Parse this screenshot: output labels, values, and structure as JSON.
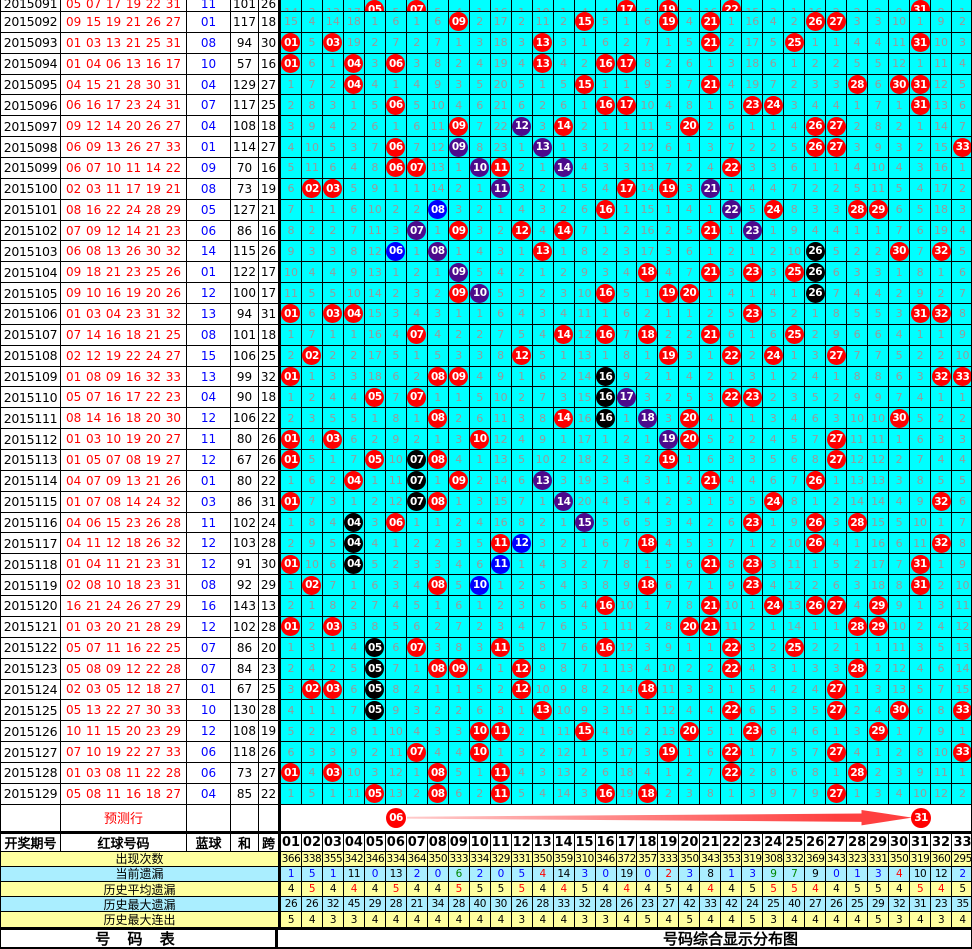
{
  "columns": [
    "01",
    "02",
    "03",
    "04",
    "05",
    "06",
    "07",
    "08",
    "09",
    "10",
    "11",
    "12",
    "13",
    "14",
    "15",
    "16",
    "17",
    "18",
    "19",
    "20",
    "21",
    "22",
    "23",
    "24",
    "25",
    "26",
    "27",
    "28",
    "29",
    "30",
    "31",
    "32",
    "33"
  ],
  "header": {
    "period": "开奖期号",
    "reds": "红球号码",
    "blue": "蓝球",
    "sum": "和",
    "span": "跨"
  },
  "rows": [
    {
      "p": "2015091",
      "r": [
        "05",
        "07",
        "17",
        "19",
        "22",
        "31"
      ],
      "b": "11",
      "s": "101",
      "k": "26"
    },
    {
      "p": "2015092",
      "r": [
        "09",
        "15",
        "19",
        "21",
        "26",
        "27"
      ],
      "b": "01",
      "s": "117",
      "k": "18"
    },
    {
      "p": "2015093",
      "r": [
        "01",
        "03",
        "13",
        "21",
        "25",
        "31"
      ],
      "b": "08",
      "s": "94",
      "k": "30"
    },
    {
      "p": "2015094",
      "r": [
        "01",
        "04",
        "06",
        "13",
        "16",
        "17"
      ],
      "b": "10",
      "s": "57",
      "k": "16"
    },
    {
      "p": "2015095",
      "r": [
        "04",
        "15",
        "21",
        "28",
        "30",
        "31"
      ],
      "b": "04",
      "s": "129",
      "k": "27"
    },
    {
      "p": "2015096",
      "r": [
        "06",
        "16",
        "17",
        "23",
        "24",
        "31"
      ],
      "b": "07",
      "s": "117",
      "k": "25"
    },
    {
      "p": "2015097",
      "r": [
        "09",
        "12",
        "14",
        "20",
        "26",
        "27"
      ],
      "b": "04",
      "s": "108",
      "k": "18"
    },
    {
      "p": "2015098",
      "r": [
        "06",
        "09",
        "13",
        "26",
        "27",
        "33"
      ],
      "b": "01",
      "s": "114",
      "k": "27"
    },
    {
      "p": "2015099",
      "r": [
        "06",
        "07",
        "10",
        "11",
        "14",
        "22"
      ],
      "b": "09",
      "s": "70",
      "k": "16"
    },
    {
      "p": "2015100",
      "r": [
        "02",
        "03",
        "11",
        "17",
        "19",
        "21"
      ],
      "b": "08",
      "s": "73",
      "k": "19"
    },
    {
      "p": "2015101",
      "r": [
        "08",
        "16",
        "22",
        "24",
        "28",
        "29"
      ],
      "b": "05",
      "s": "127",
      "k": "21"
    },
    {
      "p": "2015102",
      "r": [
        "07",
        "09",
        "12",
        "14",
        "21",
        "23"
      ],
      "b": "06",
      "s": "86",
      "k": "16"
    },
    {
      "p": "2015103",
      "r": [
        "06",
        "08",
        "13",
        "26",
        "30",
        "32"
      ],
      "b": "14",
      "s": "115",
      "k": "26"
    },
    {
      "p": "2015104",
      "r": [
        "09",
        "18",
        "21",
        "23",
        "25",
        "26"
      ],
      "b": "01",
      "s": "122",
      "k": "17"
    },
    {
      "p": "2015105",
      "r": [
        "09",
        "10",
        "16",
        "19",
        "20",
        "26"
      ],
      "b": "12",
      "s": "100",
      "k": "17"
    },
    {
      "p": "2015106",
      "r": [
        "01",
        "03",
        "04",
        "23",
        "31",
        "32"
      ],
      "b": "13",
      "s": "94",
      "k": "31"
    },
    {
      "p": "2015107",
      "r": [
        "07",
        "14",
        "16",
        "18",
        "21",
        "25"
      ],
      "b": "08",
      "s": "101",
      "k": "18"
    },
    {
      "p": "2015108",
      "r": [
        "02",
        "12",
        "19",
        "22",
        "24",
        "27"
      ],
      "b": "15",
      "s": "106",
      "k": "25"
    },
    {
      "p": "2015109",
      "r": [
        "01",
        "08",
        "09",
        "16",
        "32",
        "33"
      ],
      "b": "13",
      "s": "99",
      "k": "32"
    },
    {
      "p": "2015110",
      "r": [
        "05",
        "07",
        "16",
        "17",
        "22",
        "23"
      ],
      "b": "04",
      "s": "90",
      "k": "18"
    },
    {
      "p": "2015111",
      "r": [
        "08",
        "14",
        "16",
        "18",
        "20",
        "30"
      ],
      "b": "12",
      "s": "106",
      "k": "22"
    },
    {
      "p": "2015112",
      "r": [
        "01",
        "03",
        "10",
        "19",
        "20",
        "27"
      ],
      "b": "11",
      "s": "80",
      "k": "26"
    },
    {
      "p": "2015113",
      "r": [
        "01",
        "05",
        "07",
        "08",
        "19",
        "27"
      ],
      "b": "12",
      "s": "67",
      "k": "26"
    },
    {
      "p": "2015114",
      "r": [
        "04",
        "07",
        "09",
        "13",
        "21",
        "26"
      ],
      "b": "01",
      "s": "80",
      "k": "22"
    },
    {
      "p": "2015115",
      "r": [
        "01",
        "07",
        "08",
        "14",
        "24",
        "32"
      ],
      "b": "03",
      "s": "86",
      "k": "31"
    },
    {
      "p": "2015116",
      "r": [
        "04",
        "06",
        "15",
        "23",
        "26",
        "28"
      ],
      "b": "11",
      "s": "102",
      "k": "24"
    },
    {
      "p": "2015117",
      "r": [
        "04",
        "11",
        "12",
        "18",
        "26",
        "32"
      ],
      "b": "12",
      "s": "103",
      "k": "28"
    },
    {
      "p": "2015118",
      "r": [
        "01",
        "04",
        "11",
        "21",
        "23",
        "31"
      ],
      "b": "12",
      "s": "91",
      "k": "30"
    },
    {
      "p": "2015119",
      "r": [
        "02",
        "08",
        "10",
        "18",
        "23",
        "31"
      ],
      "b": "08",
      "s": "92",
      "k": "29"
    },
    {
      "p": "2015120",
      "r": [
        "16",
        "21",
        "24",
        "26",
        "27",
        "29"
      ],
      "b": "16",
      "s": "143",
      "k": "13"
    },
    {
      "p": "2015121",
      "r": [
        "01",
        "03",
        "20",
        "21",
        "28",
        "29"
      ],
      "b": "12",
      "s": "102",
      "k": "28"
    },
    {
      "p": "2015122",
      "r": [
        "05",
        "07",
        "11",
        "16",
        "22",
        "25"
      ],
      "b": "07",
      "s": "86",
      "k": "20"
    },
    {
      "p": "2015123",
      "r": [
        "05",
        "08",
        "09",
        "12",
        "22",
        "28"
      ],
      "b": "07",
      "s": "84",
      "k": "23"
    },
    {
      "p": "2015124",
      "r": [
        "02",
        "03",
        "05",
        "12",
        "18",
        "27"
      ],
      "b": "01",
      "s": "67",
      "k": "25"
    },
    {
      "p": "2015125",
      "r": [
        "05",
        "13",
        "22",
        "27",
        "30",
        "33"
      ],
      "b": "10",
      "s": "130",
      "k": "28"
    },
    {
      "p": "2015126",
      "r": [
        "10",
        "11",
        "15",
        "20",
        "23",
        "29"
      ],
      "b": "12",
      "s": "108",
      "k": "19"
    },
    {
      "p": "2015127",
      "r": [
        "07",
        "10",
        "19",
        "22",
        "27",
        "33"
      ],
      "b": "06",
      "s": "118",
      "k": "26"
    },
    {
      "p": "2015128",
      "r": [
        "01",
        "03",
        "08",
        "11",
        "22",
        "28"
      ],
      "b": "06",
      "s": "73",
      "k": "27"
    },
    {
      "p": "2015129",
      "r": [
        "05",
        "08",
        "11",
        "16",
        "18",
        "27"
      ],
      "b": "04",
      "s": "85",
      "k": "22"
    }
  ],
  "grid": {
    "start_miss": [
      14,
      3,
      13,
      17,
      0,
      5,
      0,
      5,
      4,
      1,
      16,
      1,
      10,
      1,
      4,
      4,
      0,
      5,
      0,
      3,
      16,
      0,
      15,
      3,
      1,
      16,
      2,
      2,
      2,
      9,
      0,
      8,
      1
    ],
    "special_balls": [
      {
        "p": "2015097",
        "n": "12",
        "c": "purple"
      },
      {
        "p": "2015098",
        "n": "09",
        "c": "purple"
      },
      {
        "p": "2015098",
        "n": "13",
        "c": "purple"
      },
      {
        "p": "2015099",
        "n": "10",
        "c": "purple"
      },
      {
        "p": "2015099",
        "n": "14",
        "c": "purple"
      },
      {
        "p": "2015100",
        "n": "11",
        "c": "purple"
      },
      {
        "p": "2015100",
        "n": "21",
        "c": "purple"
      },
      {
        "p": "2015101",
        "n": "08",
        "c": "blue"
      },
      {
        "p": "2015101",
        "n": "22",
        "c": "purple"
      },
      {
        "p": "2015102",
        "n": "07",
        "c": "purple"
      },
      {
        "p": "2015102",
        "n": "23",
        "c": "purple"
      },
      {
        "p": "2015103",
        "n": "06",
        "c": "blue"
      },
      {
        "p": "2015103",
        "n": "08",
        "c": "purple"
      },
      {
        "p": "2015103",
        "n": "26",
        "c": "black"
      },
      {
        "p": "2015104",
        "n": "09",
        "c": "purple"
      },
      {
        "p": "2015104",
        "n": "26",
        "c": "black"
      },
      {
        "p": "2015105",
        "n": "10",
        "c": "purple"
      },
      {
        "p": "2015105",
        "n": "26",
        "c": "black"
      },
      {
        "p": "2015109",
        "n": "16",
        "c": "black"
      },
      {
        "p": "2015110",
        "n": "16",
        "c": "black"
      },
      {
        "p": "2015110",
        "n": "17",
        "c": "purple"
      },
      {
        "p": "2015111",
        "n": "16",
        "c": "black"
      },
      {
        "p": "2015111",
        "n": "18",
        "c": "purple"
      },
      {
        "p": "2015112",
        "n": "19",
        "c": "purple"
      },
      {
        "p": "2015113",
        "n": "07",
        "c": "black"
      },
      {
        "p": "2015114",
        "n": "07",
        "c": "black"
      },
      {
        "p": "2015114",
        "n": "13",
        "c": "purple"
      },
      {
        "p": "2015115",
        "n": "07",
        "c": "black"
      },
      {
        "p": "2015115",
        "n": "14",
        "c": "purple"
      },
      {
        "p": "2015116",
        "n": "04",
        "c": "black"
      },
      {
        "p": "2015116",
        "n": "15",
        "c": "purple"
      },
      {
        "p": "2015117",
        "n": "04",
        "c": "black"
      },
      {
        "p": "2015117",
        "n": "12",
        "c": "blue"
      },
      {
        "p": "2015118",
        "n": "04",
        "c": "black"
      },
      {
        "p": "2015118",
        "n": "11",
        "c": "blue"
      },
      {
        "p": "2015119",
        "n": "10",
        "c": "blue"
      },
      {
        "p": "2015122",
        "n": "05",
        "c": "black"
      },
      {
        "p": "2015123",
        "n": "05",
        "c": "black"
      },
      {
        "p": "2015124",
        "n": "05",
        "c": "black"
      },
      {
        "p": "2015125",
        "n": "05",
        "c": "black"
      }
    ]
  },
  "prediction": {
    "label": "预测行",
    "from": "06",
    "to": "31"
  },
  "footer": {
    "rows": [
      {
        "label": "出现次数",
        "bg": "yellow"
      },
      {
        "label": "当前遗漏",
        "bg": "cyan",
        "colors": [
          "b",
          "b",
          "b",
          "k",
          "b",
          "k",
          "b",
          "b",
          "g",
          "b",
          "b",
          "b",
          "r",
          "k",
          "b",
          "b",
          "k",
          "b",
          "r",
          "b",
          "k",
          "b",
          "b",
          "g",
          "g",
          "k",
          "b",
          "b",
          "b",
          "r",
          "k",
          "k",
          "b"
        ]
      },
      {
        "label": "历史平均遗漏",
        "bg": "yellow",
        "colors": [
          "k",
          "r",
          "k",
          "r",
          "k",
          "r",
          "k",
          "k",
          "r",
          "k",
          "k",
          "r",
          "k",
          "r",
          "k",
          "k",
          "r",
          "k",
          "k",
          "k",
          "r",
          "k",
          "k",
          "r",
          "r",
          "r",
          "k",
          "k",
          "k",
          "k",
          "r",
          "r",
          "k"
        ]
      },
      {
        "label": "历史最大遗漏",
        "bg": "cyan"
      },
      {
        "label": "历史最大连出",
        "bg": "yellow"
      }
    ]
  },
  "bottom": {
    "left": "号 码 表",
    "right": "号码综合显示分布图"
  },
  "colors": {
    "grid_bg": "#00ffff",
    "miss_text": "#999999",
    "ball_red": "#ff0000",
    "ball_purple": "#4c0a8c",
    "ball_blue": "#0000ff",
    "ball_black": "#000000",
    "footer_yellow": "#ffff9f",
    "footer_cyan": "#aaeeff",
    "value_blue": "#0000ff",
    "value_red": "#ff0000",
    "value_green": "#008800",
    "value_black": "#000000"
  },
  "chart_data": {
    "type": "table",
    "title": "号码综合显示分布图",
    "series": [
      {
        "name": "出现次数",
        "values": [
          366,
          338,
          355,
          342,
          346,
          334,
          364,
          350,
          333,
          334,
          329,
          331,
          350,
          359,
          310,
          346,
          372,
          357,
          333,
          350,
          343,
          353,
          319,
          308,
          332,
          369,
          343,
          323,
          331,
          350,
          319,
          360,
          295
        ]
      },
      {
        "name": "当前遗漏",
        "values": [
          1,
          5,
          1,
          11,
          0,
          13,
          2,
          0,
          6,
          2,
          0,
          5,
          4,
          14,
          3,
          0,
          19,
          0,
          2,
          3,
          8,
          1,
          3,
          9,
          7,
          9,
          0,
          1,
          3,
          4,
          10,
          12,
          2
        ]
      },
      {
        "name": "历史平均遗漏",
        "values": [
          4,
          5,
          4,
          4,
          4,
          5,
          4,
          4,
          5,
          5,
          5,
          5,
          4,
          4,
          5,
          4,
          4,
          4,
          5,
          4,
          4,
          4,
          5,
          5,
          5,
          4,
          4,
          5,
          5,
          4,
          5,
          4,
          5
        ]
      },
      {
        "name": "历史最大遗漏",
        "values": [
          26,
          26,
          32,
          45,
          29,
          28,
          21,
          34,
          28,
          40,
          30,
          26,
          28,
          33,
          32,
          28,
          26,
          23,
          27,
          42,
          33,
          42,
          24,
          25,
          40,
          27,
          26,
          25,
          29,
          32,
          31,
          23,
          35
        ]
      },
      {
        "name": "历史最大连出",
        "values": [
          5,
          4,
          3,
          3,
          4,
          4,
          4,
          4,
          4,
          4,
          4,
          3,
          4,
          4,
          3,
          3,
          4,
          5,
          4,
          5,
          4,
          4,
          5,
          3,
          4,
          4,
          4,
          4,
          5,
          3,
          4,
          3,
          4
        ]
      }
    ]
  }
}
